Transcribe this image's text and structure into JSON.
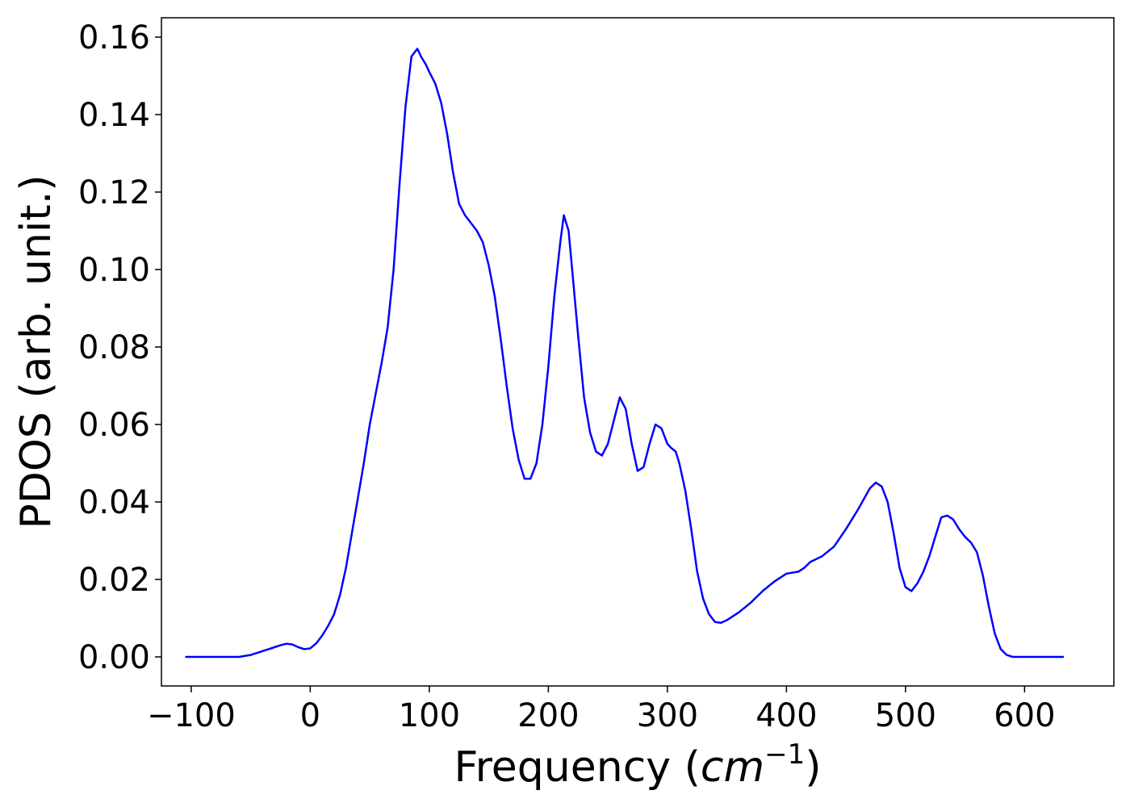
{
  "chart_data": {
    "type": "line",
    "title": "",
    "xlabel": {
      "text": "Frequency (",
      "math": "cm",
      "superscript": "−1",
      "suffix": ")"
    },
    "ylabel": "PDOS (arb. unit.)",
    "xlim": [
      -125,
      675
    ],
    "ylim": [
      -0.0075,
      0.165
    ],
    "xticks": [
      -100,
      0,
      100,
      200,
      300,
      400,
      500,
      600
    ],
    "xtick_labels": [
      "−100",
      "0",
      "100",
      "200",
      "300",
      "400",
      "500",
      "600"
    ],
    "yticks": [
      0.0,
      0.02,
      0.04,
      0.06,
      0.08,
      0.1,
      0.12,
      0.14,
      0.16
    ],
    "ytick_labels": [
      "0.00",
      "0.02",
      "0.04",
      "0.06",
      "0.08",
      "0.10",
      "0.12",
      "0.14",
      "0.16"
    ],
    "grid": false,
    "series": [
      {
        "color": "#0000ff",
        "x": [
          -105,
          -80,
          -60,
          -50,
          -40,
          -30,
          -25,
          -20,
          -15,
          -10,
          -5,
          0,
          5,
          10,
          15,
          20,
          25,
          30,
          35,
          40,
          45,
          50,
          55,
          60,
          65,
          70,
          75,
          80,
          85,
          90,
          93,
          97,
          100,
          105,
          110,
          115,
          120,
          125,
          130,
          135,
          140,
          145,
          150,
          155,
          160,
          165,
          170,
          175,
          180,
          185,
          190,
          195,
          200,
          205,
          210,
          213,
          217,
          220,
          225,
          230,
          235,
          240,
          245,
          250,
          255,
          260,
          265,
          270,
          275,
          280,
          285,
          290,
          295,
          300,
          303,
          307,
          310,
          315,
          320,
          325,
          330,
          335,
          340,
          345,
          350,
          360,
          370,
          380,
          390,
          400,
          410,
          415,
          420,
          430,
          440,
          450,
          460,
          470,
          475,
          480,
          485,
          490,
          495,
          500,
          505,
          510,
          515,
          520,
          525,
          530,
          535,
          540,
          545,
          550,
          555,
          560,
          565,
          570,
          575,
          580,
          585,
          590,
          600,
          633
        ],
        "y": [
          0.0,
          0.0,
          0.0,
          0.0005,
          0.0015,
          0.0025,
          0.003,
          0.0034,
          0.0032,
          0.0025,
          0.002,
          0.0022,
          0.0035,
          0.0055,
          0.008,
          0.011,
          0.016,
          0.023,
          0.032,
          0.041,
          0.05,
          0.06,
          0.068,
          0.076,
          0.085,
          0.1,
          0.122,
          0.142,
          0.155,
          0.157,
          0.155,
          0.153,
          0.151,
          0.148,
          0.143,
          0.135,
          0.125,
          0.117,
          0.114,
          0.112,
          0.11,
          0.107,
          0.101,
          0.093,
          0.082,
          0.07,
          0.059,
          0.051,
          0.046,
          0.046,
          0.05,
          0.06,
          0.075,
          0.093,
          0.107,
          0.114,
          0.11,
          0.1,
          0.083,
          0.067,
          0.058,
          0.053,
          0.052,
          0.055,
          0.061,
          0.067,
          0.064,
          0.055,
          0.048,
          0.049,
          0.055,
          0.06,
          0.059,
          0.055,
          0.054,
          0.053,
          0.05,
          0.043,
          0.033,
          0.022,
          0.015,
          0.011,
          0.009,
          0.0088,
          0.0095,
          0.0115,
          0.014,
          0.017,
          0.0195,
          0.0215,
          0.022,
          0.023,
          0.0245,
          0.026,
          0.0285,
          0.033,
          0.038,
          0.0435,
          0.045,
          0.044,
          0.04,
          0.032,
          0.023,
          0.018,
          0.017,
          0.019,
          0.022,
          0.026,
          0.031,
          0.036,
          0.0365,
          0.0355,
          0.033,
          0.031,
          0.0295,
          0.027,
          0.021,
          0.013,
          0.006,
          0.002,
          0.0005,
          0.0,
          0.0,
          0.0
        ]
      }
    ]
  }
}
